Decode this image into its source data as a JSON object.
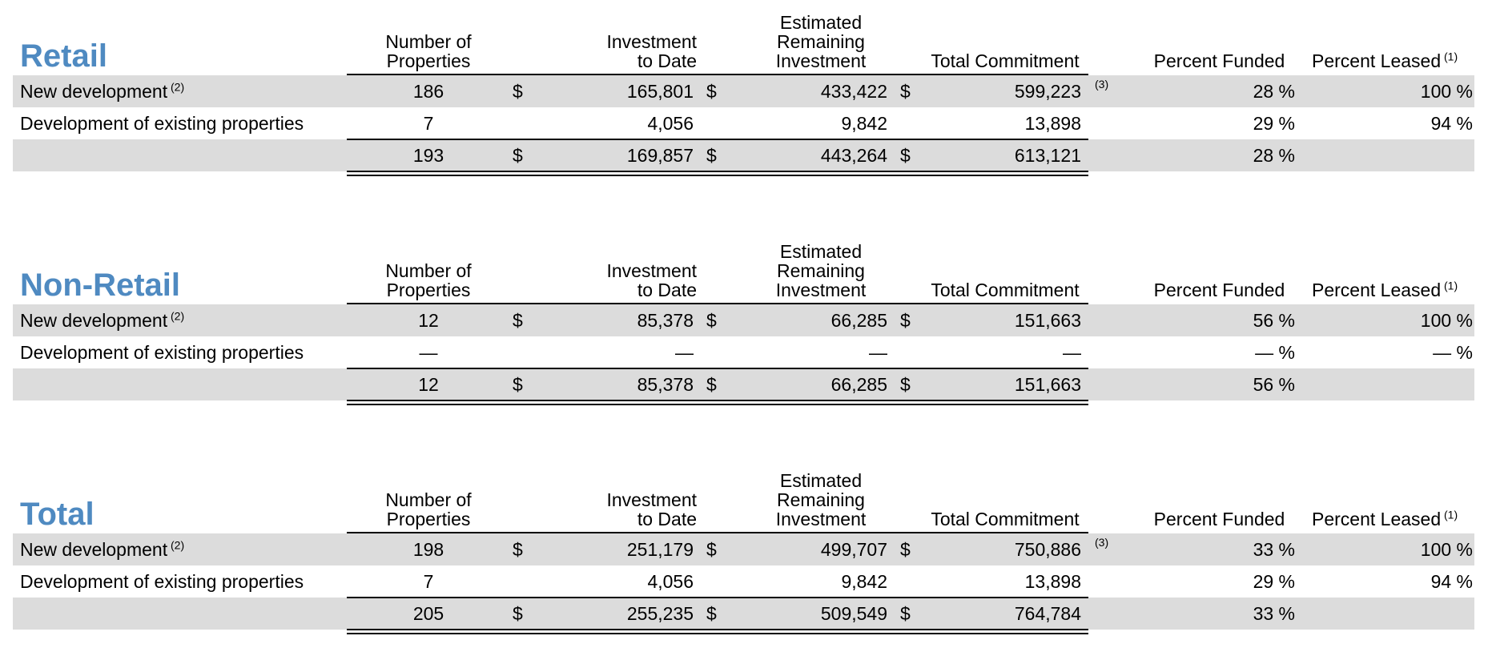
{
  "headers": {
    "number_of_properties": [
      "Number of",
      "Properties"
    ],
    "investment_to_date": [
      "Investment",
      "to Date"
    ],
    "estimated_remaining": [
      "Estimated",
      "Remaining",
      "Investment"
    ],
    "total_commitment": "Total Commitment",
    "percent_funded": "Percent Funded",
    "percent_leased": "Percent Leased",
    "percent_leased_note": "(1)",
    "row_note": "(2)",
    "commit_note": "(3)",
    "dollar": "$"
  },
  "sections": [
    {
      "title": "Retail",
      "rows": [
        {
          "label": "New development",
          "props": "186",
          "invest": "165,801",
          "remaining": "433,422",
          "commitment": "599,223",
          "commit_note": true,
          "funded": "28 %",
          "leased": "100 %",
          "dollars": true
        },
        {
          "label": "Development of existing properties",
          "props": "7",
          "invest": "4,056",
          "remaining": "9,842",
          "commitment": "13,898",
          "commit_note": false,
          "funded": "29 %",
          "leased": "94 %",
          "dollars": false
        },
        {
          "label": "",
          "props": "193",
          "invest": "169,857",
          "remaining": "443,264",
          "commitment": "613,121",
          "commit_note": false,
          "funded": "28 %",
          "leased": "",
          "dollars": true
        }
      ]
    },
    {
      "title": "Non-Retail",
      "rows": [
        {
          "label": "New development",
          "props": "12",
          "invest": "85,378",
          "remaining": "66,285",
          "commitment": "151,663",
          "commit_note": false,
          "funded": "56 %",
          "leased": "100 %",
          "dollars": true
        },
        {
          "label": "Development of existing properties",
          "props": "—",
          "invest": "—",
          "remaining": "—",
          "commitment": "—",
          "commit_note": false,
          "funded": "— %",
          "leased": "— %",
          "dollars": false
        },
        {
          "label": "",
          "props": "12",
          "invest": "85,378",
          "remaining": "66,285",
          "commitment": "151,663",
          "commit_note": false,
          "funded": "56 %",
          "leased": "",
          "dollars": true
        }
      ]
    },
    {
      "title": "Total",
      "rows": [
        {
          "label": "New development",
          "props": "198",
          "invest": "251,179",
          "remaining": "499,707",
          "commitment": "750,886",
          "commit_note": true,
          "funded": "33 %",
          "leased": "100 %",
          "dollars": true
        },
        {
          "label": "Development of existing properties",
          "props": "7",
          "invest": "4,056",
          "remaining": "9,842",
          "commitment": "13,898",
          "commit_note": false,
          "funded": "29 %",
          "leased": "94 %",
          "dollars": false
        },
        {
          "label": "",
          "props": "205",
          "invest": "255,235",
          "remaining": "509,549",
          "commitment": "764,784",
          "commit_note": false,
          "funded": "33 %",
          "leased": "",
          "dollars": true
        }
      ]
    }
  ]
}
